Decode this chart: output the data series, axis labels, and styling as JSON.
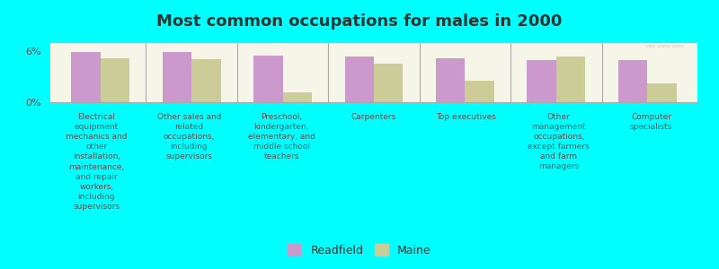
{
  "title": "Most common occupations for males in 2000",
  "background_color": "#00FFFF",
  "plot_bg_color": "#F5F5E8",
  "bar_color_readfield": "#CC99CC",
  "bar_color_maine": "#CCCC99",
  "categories": [
    "Electrical\nequipment\nmechanics and\nother\ninstallation,\nmaintenance,\nand repair\nworkers,\nincluding\nsupervisors",
    "Other sales and\nrelated\noccupations,\nincluding\nsupervisors",
    "Preschool,\nkindergarten,\nelementary, and\nmiddle school\nteachers",
    "Carpenters",
    "Top executives",
    "Other\nmanagement\noccupations,\nexcept farmers\nand farm\nmanagers",
    "Computer\nspecialists"
  ],
  "readfield_values": [
    5.9,
    5.9,
    5.5,
    5.4,
    5.2,
    5.0,
    5.0
  ],
  "maine_values": [
    5.2,
    5.1,
    1.2,
    4.6,
    2.5,
    5.4,
    2.2
  ],
  "ylim": [
    0,
    7
  ],
  "ytick_labels": [
    "0%",
    "6%"
  ],
  "legend_labels": [
    "Readfield",
    "Maine"
  ],
  "watermark": "city-data.com",
  "title_fontsize": 13,
  "label_fontsize": 6.5,
  "legend_fontsize": 9
}
